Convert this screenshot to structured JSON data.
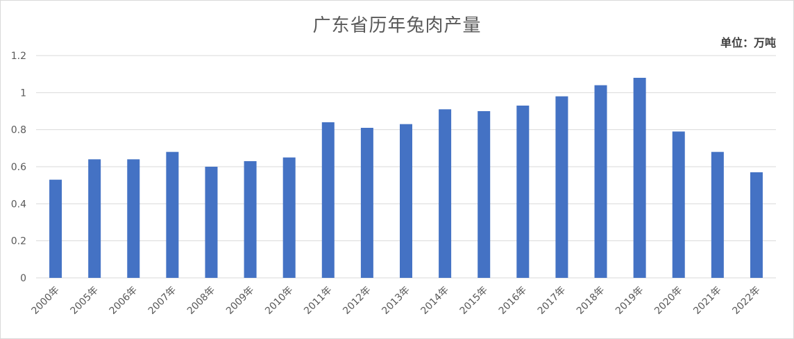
{
  "chart_data": {
    "type": "bar",
    "title": "广东省历年兔肉产量",
    "unit_label": "单位：万吨",
    "xlabel": "",
    "ylabel": "",
    "ylim": [
      0,
      1.2
    ],
    "yticks": [
      "0",
      "0.2",
      "0.4",
      "0.6",
      "0.8",
      "1",
      "1.2"
    ],
    "categories": [
      "2000年",
      "2005年",
      "2006年",
      "2007年",
      "2008年",
      "2009年",
      "2010年",
      "2011年",
      "2012年",
      "2013年",
      "2014年",
      "2015年",
      "2016年",
      "2017年",
      "2018年",
      "2019年",
      "2020年",
      "2021年",
      "2022年"
    ],
    "values": [
      0.53,
      0.64,
      0.64,
      0.68,
      0.6,
      0.63,
      0.65,
      0.84,
      0.81,
      0.83,
      0.91,
      0.9,
      0.93,
      0.98,
      1.04,
      1.08,
      0.79,
      0.68,
      0.57
    ],
    "grid": true,
    "legend": "none",
    "bar_color": "#4472c4",
    "grid_color": "#d9d9d9"
  }
}
